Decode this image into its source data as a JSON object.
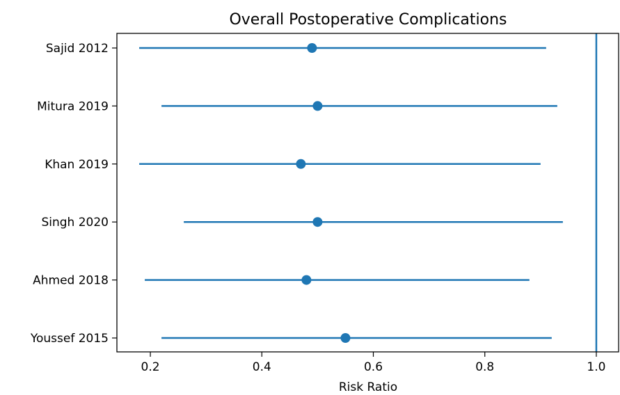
{
  "chart_data": {
    "type": "forest",
    "title": "Overall Postoperative Complications",
    "xlabel": "Risk Ratio",
    "ylabel": "",
    "xlim": [
      0.14,
      1.04
    ],
    "xticks": [
      0.2,
      0.4,
      0.6,
      0.8,
      1.0
    ],
    "xtick_labels": [
      "0.2",
      "0.4",
      "0.6",
      "0.8",
      "1.0"
    ],
    "reference_line": 1.0,
    "color": "#1f77b4",
    "grid": false,
    "studies": [
      {
        "label": "Sajid 2012",
        "estimate": 0.49,
        "lower": 0.18,
        "upper": 0.91
      },
      {
        "label": "Mitura 2019",
        "estimate": 0.5,
        "lower": 0.22,
        "upper": 0.93
      },
      {
        "label": "Khan 2019",
        "estimate": 0.47,
        "lower": 0.18,
        "upper": 0.9
      },
      {
        "label": "Singh 2020",
        "estimate": 0.5,
        "lower": 0.26,
        "upper": 0.94
      },
      {
        "label": "Ahmed 2018",
        "estimate": 0.48,
        "lower": 0.19,
        "upper": 0.88
      },
      {
        "label": "Youssef 2015",
        "estimate": 0.55,
        "lower": 0.22,
        "upper": 0.92
      }
    ]
  }
}
